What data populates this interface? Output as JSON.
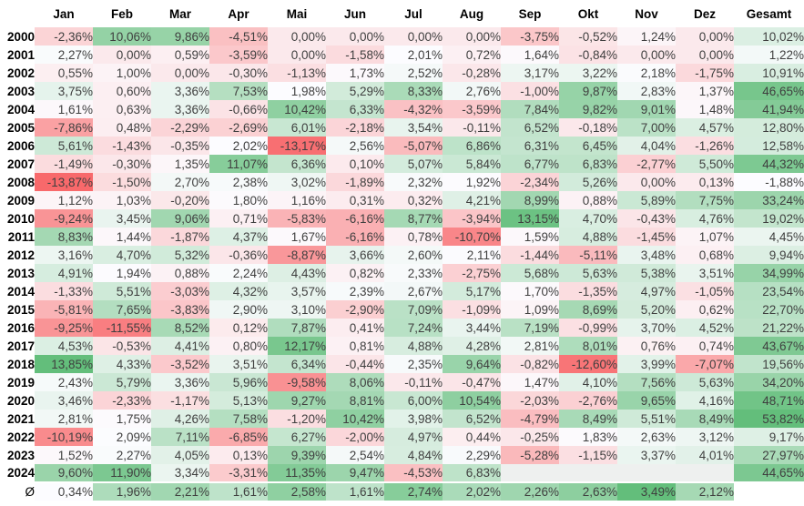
{
  "chart_data": {
    "type": "heatmap",
    "title": "",
    "corner_label": "",
    "columns": [
      "Jan",
      "Feb",
      "Mar",
      "Apr",
      "Mai",
      "Jun",
      "Jul",
      "Aug",
      "Sep",
      "Okt",
      "Nov",
      "Dez",
      "Gesamt"
    ],
    "value_format": {
      "decimals": 2,
      "decimal_separator": ",",
      "suffix": "%"
    },
    "rows": [
      {
        "year": "2000",
        "monthly": [
          -2.36,
          10.06,
          9.86,
          -4.51,
          0.0,
          0.0,
          0.0,
          0.0,
          -3.75,
          -0.52,
          1.24,
          0.0
        ],
        "gesamt": 10.02
      },
      {
        "year": "2001",
        "monthly": [
          2.27,
          0.0,
          0.59,
          -3.59,
          0.0,
          -1.58,
          2.01,
          0.72,
          1.64,
          -0.84,
          0.0,
          0.0
        ],
        "gesamt": 1.22
      },
      {
        "year": "2002",
        "monthly": [
          0.55,
          1.0,
          0.0,
          -0.3,
          -1.13,
          1.73,
          2.52,
          -0.28,
          3.17,
          3.22,
          2.18,
          -1.75
        ],
        "gesamt": 10.91
      },
      {
        "year": "2003",
        "monthly": [
          3.75,
          0.6,
          3.36,
          7.53,
          1.98,
          5.29,
          8.33,
          2.76,
          -1.0,
          9.87,
          2.83,
          1.37
        ],
        "gesamt": 46.65
      },
      {
        "year": "2004",
        "monthly": [
          1.61,
          0.63,
          3.36,
          -0.66,
          10.42,
          6.33,
          -4.32,
          -3.59,
          7.84,
          9.82,
          9.01,
          1.48
        ],
        "gesamt": 41.94
      },
      {
        "year": "2005",
        "monthly": [
          -7.86,
          0.48,
          -2.29,
          -2.69,
          6.01,
          -2.18,
          3.54,
          -0.11,
          6.52,
          -0.18,
          7.0,
          4.57
        ],
        "gesamt": 12.8
      },
      {
        "year": "2006",
        "monthly": [
          5.61,
          -1.43,
          -0.35,
          2.02,
          -13.17,
          2.56,
          -5.07,
          6.86,
          6.31,
          6.45,
          4.04,
          -1.26
        ],
        "gesamt": 12.58
      },
      {
        "year": "2007",
        "monthly": [
          -1.49,
          -0.3,
          1.35,
          11.07,
          6.36,
          0.1,
          5.07,
          5.84,
          6.77,
          6.83,
          -2.77,
          5.5
        ],
        "gesamt": 44.32
      },
      {
        "year": "2008",
        "monthly": [
          -13.87,
          -1.5,
          2.7,
          2.38,
          3.02,
          -1.89,
          2.32,
          1.92,
          -2.34,
          5.26,
          0.0,
          0.13
        ],
        "gesamt": -1.88
      },
      {
        "year": "2009",
        "monthly": [
          1.12,
          1.03,
          -0.2,
          1.8,
          1.16,
          0.31,
          0.32,
          4.21,
          8.99,
          0.88,
          5.89,
          7.75
        ],
        "gesamt": 33.24
      },
      {
        "year": "2010",
        "monthly": [
          -9.24,
          3.45,
          9.06,
          0.71,
          -5.83,
          -6.16,
          8.77,
          -3.94,
          13.15,
          4.7,
          -0.43,
          4.76
        ],
        "gesamt": 19.02
      },
      {
        "year": "2011",
        "monthly": [
          8.83,
          1.44,
          -1.87,
          4.37,
          1.67,
          -6.16,
          0.78,
          -10.7,
          1.59,
          4.88,
          -1.45,
          1.07
        ],
        "gesamt": 4.45
      },
      {
        "year": "2012",
        "monthly": [
          3.16,
          4.7,
          5.32,
          -0.36,
          -8.87,
          3.66,
          2.6,
          2.11,
          -1.44,
          -5.11,
          3.48,
          0.68
        ],
        "gesamt": 9.94
      },
      {
        "year": "2013",
        "monthly": [
          4.91,
          1.94,
          0.88,
          2.24,
          4.43,
          0.82,
          2.33,
          -2.75,
          5.68,
          5.63,
          5.38,
          3.51
        ],
        "gesamt": 34.99
      },
      {
        "year": "2014",
        "monthly": [
          -1.33,
          5.51,
          -3.03,
          4.32,
          3.57,
          2.39,
          2.67,
          5.17,
          1.7,
          -1.35,
          4.97,
          -1.05
        ],
        "gesamt": 23.54
      },
      {
        "year": "2015",
        "monthly": [
          -5.81,
          7.65,
          -3.83,
          2.9,
          3.1,
          -2.9,
          7.09,
          -1.09,
          1.09,
          8.69,
          5.2,
          0.62
        ],
        "gesamt": 22.7
      },
      {
        "year": "2016",
        "monthly": [
          -9.25,
          -11.55,
          8.52,
          0.12,
          7.87,
          0.41,
          7.24,
          3.44,
          7.19,
          -0.99,
          3.7,
          4.52
        ],
        "gesamt": 21.22
      },
      {
        "year": "2017",
        "monthly": [
          4.53,
          -0.53,
          4.41,
          0.8,
          12.17,
          0.81,
          4.88,
          4.28,
          2.81,
          8.01,
          0.76,
          0.74
        ],
        "gesamt": 43.67
      },
      {
        "year": "2018",
        "monthly": [
          13.85,
          4.33,
          -3.52,
          3.51,
          6.34,
          -0.44,
          2.35,
          9.64,
          -0.82,
          -12.6,
          3.99,
          -7.07
        ],
        "gesamt": 19.56
      },
      {
        "year": "2019",
        "monthly": [
          2.43,
          5.79,
          3.36,
          5.96,
          -9.58,
          8.06,
          -0.11,
          -0.47,
          1.47,
          4.1,
          7.56,
          5.63
        ],
        "gesamt": 34.2
      },
      {
        "year": "2020",
        "monthly": [
          3.46,
          -2.33,
          -1.17,
          5.13,
          9.27,
          8.81,
          6.0,
          10.54,
          -2.03,
          -2.76,
          9.65,
          4.16
        ],
        "gesamt": 48.71
      },
      {
        "year": "2021",
        "monthly": [
          2.81,
          1.75,
          4.26,
          7.58,
          -1.2,
          10.42,
          3.98,
          6.52,
          -4.79,
          8.49,
          5.51,
          8.49
        ],
        "gesamt": 53.82
      },
      {
        "year": "2022",
        "monthly": [
          -10.19,
          2.09,
          7.11,
          -6.85,
          6.27,
          -2.0,
          4.97,
          0.44,
          -0.25,
          1.83,
          2.63,
          3.12
        ],
        "gesamt": 9.17
      },
      {
        "year": "2023",
        "monthly": [
          1.52,
          2.27,
          4.05,
          0.13,
          9.39,
          2.54,
          4.84,
          2.29,
          -5.28,
          -1.15,
          3.37,
          4.01
        ],
        "gesamt": 27.97
      },
      {
        "year": "2024",
        "monthly": [
          9.6,
          11.9,
          3.34,
          -3.31,
          11.35,
          9.47,
          -4.53,
          6.83,
          null,
          null,
          null,
          null
        ],
        "gesamt": 44.65
      },
      {
        "year": "Ø",
        "monthly": [
          0.34,
          1.96,
          2.21,
          1.61,
          2.58,
          1.61,
          2.74,
          2.02,
          2.26,
          2.63,
          3.49,
          2.12
        ],
        "gesamt": null,
        "is_average": true
      }
    ],
    "color_scales": {
      "monthly": {
        "min": -13.87,
        "mid": 2.0,
        "max": 13.85,
        "min_color": "#F8696B",
        "mid_color": "#FCFCFF",
        "max_color": "#63BE7B"
      },
      "gesamt": {
        "min": -1.88,
        "max": 53.82,
        "min_color": "#FCFCFF",
        "max_color": "#63BE7B"
      },
      "average": {
        "min": 0.34,
        "max": 3.49,
        "min_color": "#FCFCFF",
        "max_color": "#63BE7B"
      },
      "empty_cell_color": "#EEF0EF",
      "text_color": "#3F3F3F",
      "header_text_color": "#000000"
    }
  }
}
